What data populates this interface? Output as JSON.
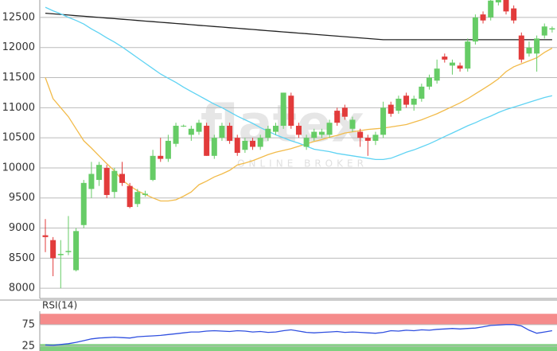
{
  "chart_data": [
    {
      "type": "candlestick",
      "watermark": "flatex",
      "watermark_subtitle": "ONLINE BROKER",
      "ylim": [
        7830,
        12790
      ],
      "yticks": [
        8000,
        8500,
        9000,
        9500,
        10000,
        10500,
        11000,
        11500,
        12000,
        12500
      ],
      "grid": true,
      "up_color": "#66cc66",
      "down_color": "#e23b3b",
      "candles": {
        "open": [
          8880,
          8800,
          8550,
          8600,
          8300,
          9050,
          9650,
          9800,
          10000,
          9600,
          9900,
          9700,
          9400,
          9550,
          9800,
          10200,
          10150,
          10400,
          10700,
          10550,
          10600,
          10700,
          10200,
          10500,
          10700,
          10500,
          10300,
          10450,
          10350,
          10500,
          10600,
          10700,
          11200,
          10700,
          10350,
          10500,
          10550,
          10550,
          10950,
          11000,
          10650,
          10600,
          10500,
          10450,
          10550,
          11050,
          10950,
          11200,
          11050,
          11150,
          11350,
          11450,
          11850,
          11700,
          11700,
          11650,
          12100,
          12550,
          12500,
          12750,
          12790,
          12650,
          12200,
          11900,
          11900,
          12200,
          12300
        ],
        "high": [
          9150,
          8850,
          8800,
          9200,
          9000,
          9800,
          10100,
          10100,
          10050,
          10000,
          10100,
          9750,
          9650,
          9620,
          10300,
          10500,
          10550,
          10750,
          10720,
          10700,
          10800,
          10750,
          10550,
          10750,
          10750,
          10550,
          10500,
          10500,
          10550,
          10700,
          10750,
          11250,
          11250,
          10750,
          10550,
          10650,
          10650,
          10800,
          11000,
          11050,
          10850,
          10650,
          10550,
          10600,
          11100,
          11100,
          11200,
          11250,
          11200,
          11400,
          11550,
          11800,
          11900,
          11800,
          11750,
          12150,
          12550,
          12600,
          12800,
          12800,
          12800,
          12700,
          12250,
          12100,
          12200,
          12400,
          12350
        ],
        "low": [
          8600,
          8200,
          8000,
          8550,
          8280,
          9000,
          9500,
          9700,
          9500,
          9500,
          9700,
          9330,
          9350,
          9520,
          9780,
          10100,
          10100,
          10350,
          10680,
          10450,
          10550,
          10200,
          10150,
          10450,
          10400,
          10200,
          10250,
          10300,
          10300,
          10450,
          10550,
          10650,
          10650,
          10500,
          10300,
          10450,
          10500,
          10500,
          10700,
          10800,
          10600,
          10350,
          10200,
          10380,
          10500,
          10850,
          10900,
          11000,
          10950,
          11100,
          11300,
          11400,
          11750,
          11550,
          11600,
          11600,
          12050,
          12400,
          12450,
          12700,
          12550,
          12400,
          11750,
          11850,
          11600,
          12150,
          12250
        ],
        "close": [
          8850,
          8500,
          8570,
          8620,
          8950,
          9750,
          9900,
          10050,
          9550,
          9950,
          9750,
          9350,
          9600,
          9570,
          10200,
          10150,
          10450,
          10700,
          10700,
          10650,
          10750,
          10200,
          10500,
          10700,
          10450,
          10250,
          10450,
          10350,
          10500,
          10650,
          10700,
          11250,
          10700,
          10550,
          10500,
          10600,
          10600,
          10750,
          10750,
          10850,
          10800,
          10500,
          10450,
          10550,
          11000,
          10900,
          11150,
          11050,
          11150,
          11350,
          11500,
          11650,
          11800,
          11750,
          11650,
          12100,
          12500,
          12450,
          12780,
          12790,
          12600,
          12450,
          11800,
          12000,
          12150,
          12350,
          12320
        ]
      },
      "series": [
        {
          "color": "#222222",
          "values": [
            12570,
            12560,
            12550,
            12540,
            12530,
            12520,
            12510,
            12500,
            12490,
            12480,
            12470,
            12460,
            12450,
            12440,
            12430,
            12420,
            12410,
            12400,
            12390,
            12380,
            12370,
            12360,
            12350,
            12340,
            12330,
            12320,
            12310,
            12300,
            12290,
            12280,
            12270,
            12260,
            12250,
            12240,
            12230,
            12220,
            12210,
            12200,
            12190,
            12180,
            12170,
            12160,
            12150,
            12140,
            12130,
            12130,
            12130,
            12130,
            12130,
            12130,
            12130,
            12130,
            12130,
            12130,
            12130,
            12130,
            12130,
            12130,
            12130,
            12130,
            12130,
            12130,
            12130,
            12130,
            12130,
            12130,
            12130
          ]
        },
        {
          "color": "#f2bb4a",
          "values": [
            11500,
            11150,
            11000,
            10850,
            10650,
            10450,
            10330,
            10200,
            10070,
            9950,
            9800,
            9700,
            9620,
            9560,
            9500,
            9450,
            9450,
            9470,
            9530,
            9600,
            9720,
            9780,
            9850,
            9900,
            9960,
            10050,
            10080,
            10120,
            10170,
            10220,
            10260,
            10290,
            10320,
            10360,
            10400,
            10440,
            10470,
            10510,
            10540,
            10580,
            10600,
            10620,
            10640,
            10650,
            10660,
            10680,
            10700,
            10720,
            10760,
            10800,
            10850,
            10900,
            10960,
            11020,
            11080,
            11150,
            11230,
            11310,
            11390,
            11480,
            11600,
            11680,
            11730,
            11780,
            11830,
            11920,
            11990
          ]
        },
        {
          "color": "#5fd3f3",
          "values": [
            12670,
            12610,
            12560,
            12500,
            12450,
            12390,
            12310,
            12240,
            12160,
            12090,
            12010,
            11920,
            11830,
            11740,
            11650,
            11560,
            11490,
            11420,
            11340,
            11270,
            11200,
            11130,
            11060,
            11000,
            10930,
            10860,
            10800,
            10740,
            10670,
            10610,
            10550,
            10500,
            10450,
            10410,
            10360,
            10310,
            10290,
            10270,
            10240,
            10220,
            10200,
            10180,
            10160,
            10140,
            10140,
            10160,
            10210,
            10260,
            10300,
            10350,
            10400,
            10460,
            10520,
            10580,
            10640,
            10700,
            10750,
            10810,
            10860,
            10920,
            10970,
            11010,
            11050,
            11090,
            11130,
            11170,
            11200
          ]
        }
      ]
    },
    {
      "type": "line",
      "title": "RSI(14)",
      "ylim": [
        14,
        106
      ],
      "yticks": [
        25,
        75
      ],
      "bands": [
        {
          "range": [
            75,
            100
          ],
          "color": "#f58b8b"
        },
        {
          "range": [
            0,
            30
          ],
          "color": "#7fd07f"
        }
      ],
      "series": [
        {
          "color": "#3050e0",
          "values": [
            28,
            27,
            29,
            31,
            34,
            38,
            42,
            44,
            45,
            46,
            45,
            44,
            47,
            48,
            49,
            50,
            52,
            54,
            56,
            58,
            58,
            60,
            61,
            60,
            59,
            61,
            60,
            58,
            59,
            57,
            58,
            61,
            63,
            60,
            57,
            56,
            57,
            58,
            59,
            57,
            58,
            57,
            56,
            55,
            57,
            61,
            60,
            62,
            61,
            63,
            62,
            64,
            65,
            66,
            65,
            66,
            67,
            70,
            73,
            74,
            75,
            75,
            72,
            62,
            55,
            58,
            61
          ]
        }
      ]
    }
  ]
}
